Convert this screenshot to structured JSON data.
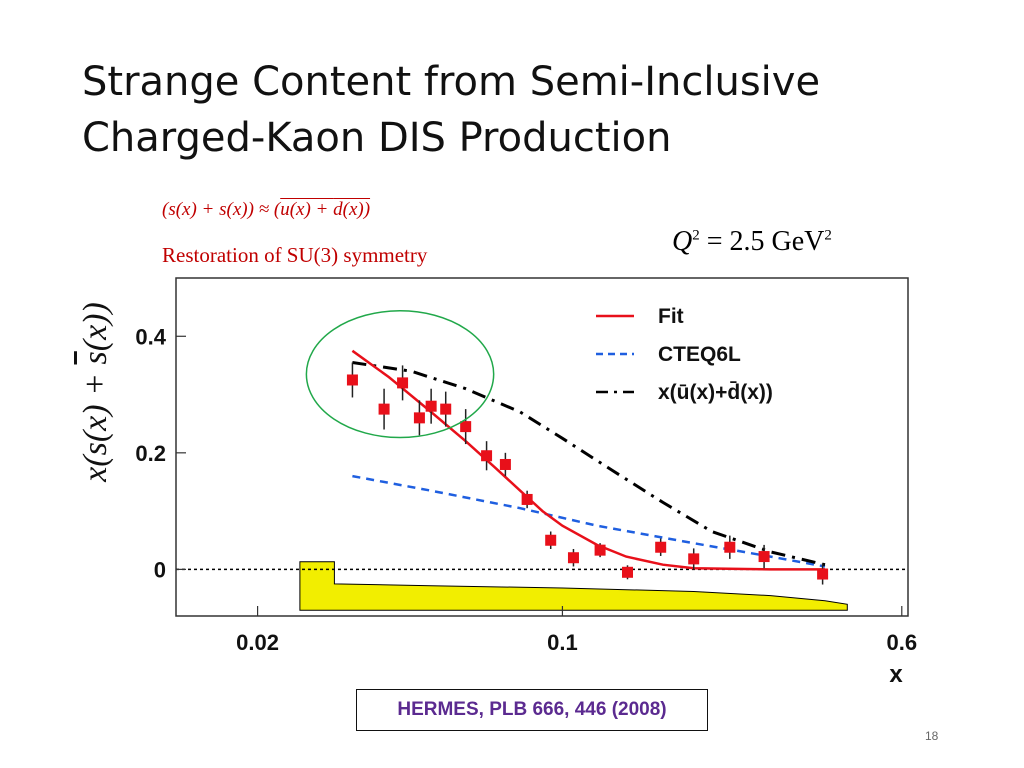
{
  "slide": {
    "title_line1": "Strange Content from Semi-Inclusive",
    "title_line2": "Charged-Kaon DIS Production",
    "eq_s_part": "(s(x) + s(x)) ≈ (",
    "eq_u_part": "u(x) + ",
    "eq_d_part": "d(x))",
    "symmetry_note": "Restoration of SU(3) symmetry",
    "q2_label": "Q",
    "q2_exp": "2",
    "q2_value": " = 2.5 GeV",
    "q2_unit_exp": "2",
    "citation": "HERMES, PLB 666, 446 (2008)",
    "page_number": "18"
  },
  "colors": {
    "data_points": "#e8101a",
    "fit": "#e8101a",
    "cteq": "#1f5fe0",
    "ud_curve": "#000000",
    "systematic_band": "#f2ee00",
    "highlight_ellipse": "#21a84a"
  },
  "chart_data": {
    "type": "scatter",
    "xscale": "log",
    "xlim": [
      0.013,
      0.62
    ],
    "ylim": [
      -0.08,
      0.5
    ],
    "xlabel": "x",
    "ylabel": "x(s(x) + s̄(x))",
    "xticks": [
      {
        "value": 0.02,
        "label": "0.02"
      },
      {
        "value": 0.1,
        "label": "0.1"
      },
      {
        "value": 0.6,
        "label": "0.6"
      }
    ],
    "yticks": [
      {
        "value": 0,
        "label": "0"
      },
      {
        "value": 0.2,
        "label": "0.2"
      },
      {
        "value": 0.4,
        "label": "0.4"
      }
    ],
    "legend": {
      "placement": "top-right",
      "entries": [
        {
          "name": "Fit",
          "style": "solid",
          "color": "#e8101a"
        },
        {
          "name": "CTEQ6L",
          "style": "dashed",
          "color": "#1f5fe0"
        },
        {
          "name": "x(ū(x)+d̄(x))",
          "style": "dash-dot",
          "color": "#000000"
        }
      ]
    },
    "data_points": [
      {
        "x": 0.033,
        "y": 0.325,
        "err": 0.03
      },
      {
        "x": 0.039,
        "y": 0.275,
        "err": 0.035
      },
      {
        "x": 0.043,
        "y": 0.32,
        "err": 0.03
      },
      {
        "x": 0.047,
        "y": 0.26,
        "err": 0.03
      },
      {
        "x": 0.05,
        "y": 0.28,
        "err": 0.03
      },
      {
        "x": 0.054,
        "y": 0.275,
        "err": 0.03
      },
      {
        "x": 0.06,
        "y": 0.245,
        "err": 0.03
      },
      {
        "x": 0.067,
        "y": 0.195,
        "err": 0.025
      },
      {
        "x": 0.074,
        "y": 0.18,
        "err": 0.02
      },
      {
        "x": 0.083,
        "y": 0.12,
        "err": 0.015
      },
      {
        "x": 0.094,
        "y": 0.05,
        "err": 0.015
      },
      {
        "x": 0.106,
        "y": 0.02,
        "err": 0.015
      },
      {
        "x": 0.122,
        "y": 0.033,
        "err": 0.012
      },
      {
        "x": 0.141,
        "y": -0.005,
        "err": 0.012
      },
      {
        "x": 0.168,
        "y": 0.038,
        "err": 0.015
      },
      {
        "x": 0.2,
        "y": 0.018,
        "err": 0.018
      },
      {
        "x": 0.242,
        "y": 0.038,
        "err": 0.02
      },
      {
        "x": 0.29,
        "y": 0.022,
        "err": 0.02
      },
      {
        "x": 0.395,
        "y": -0.008,
        "err": 0.018
      }
    ],
    "fit_curve": [
      {
        "x": 0.033,
        "y": 0.375
      },
      {
        "x": 0.04,
        "y": 0.33
      },
      {
        "x": 0.05,
        "y": 0.27
      },
      {
        "x": 0.06,
        "y": 0.22
      },
      {
        "x": 0.07,
        "y": 0.175
      },
      {
        "x": 0.08,
        "y": 0.135
      },
      {
        "x": 0.09,
        "y": 0.1
      },
      {
        "x": 0.1,
        "y": 0.075
      },
      {
        "x": 0.12,
        "y": 0.042
      },
      {
        "x": 0.14,
        "y": 0.022
      },
      {
        "x": 0.17,
        "y": 0.008
      },
      {
        "x": 0.2,
        "y": 0.002
      },
      {
        "x": 0.3,
        "y": 0.0
      },
      {
        "x": 0.4,
        "y": 0.0
      }
    ],
    "cteq_curve": [
      {
        "x": 0.033,
        "y": 0.16
      },
      {
        "x": 0.05,
        "y": 0.135
      },
      {
        "x": 0.08,
        "y": 0.105
      },
      {
        "x": 0.12,
        "y": 0.075
      },
      {
        "x": 0.2,
        "y": 0.045
      },
      {
        "x": 0.3,
        "y": 0.022
      },
      {
        "x": 0.4,
        "y": 0.005
      }
    ],
    "ud_curve": [
      {
        "x": 0.033,
        "y": 0.355
      },
      {
        "x": 0.045,
        "y": 0.34
      },
      {
        "x": 0.06,
        "y": 0.31
      },
      {
        "x": 0.08,
        "y": 0.27
      },
      {
        "x": 0.1,
        "y": 0.225
      },
      {
        "x": 0.13,
        "y": 0.17
      },
      {
        "x": 0.17,
        "y": 0.115
      },
      {
        "x": 0.22,
        "y": 0.065
      },
      {
        "x": 0.3,
        "y": 0.03
      },
      {
        "x": 0.4,
        "y": 0.008
      }
    ],
    "systematic_band": [
      {
        "x": 0.025,
        "y": 0.013
      },
      {
        "x": 0.03,
        "y": 0.013
      },
      {
        "x": 0.03,
        "y": -0.025
      },
      {
        "x": 0.05,
        "y": -0.028
      },
      {
        "x": 0.1,
        "y": -0.032
      },
      {
        "x": 0.2,
        "y": -0.038
      },
      {
        "x": 0.3,
        "y": -0.045
      },
      {
        "x": 0.4,
        "y": -0.054
      },
      {
        "x": 0.45,
        "y": -0.06
      },
      {
        "x": 0.45,
        "y": -0.07
      },
      {
        "x": 0.025,
        "y": -0.07
      }
    ],
    "highlight_region": {
      "x_range": [
        0.03,
        0.06
      ],
      "y_range": [
        0.24,
        0.43
      ]
    }
  }
}
